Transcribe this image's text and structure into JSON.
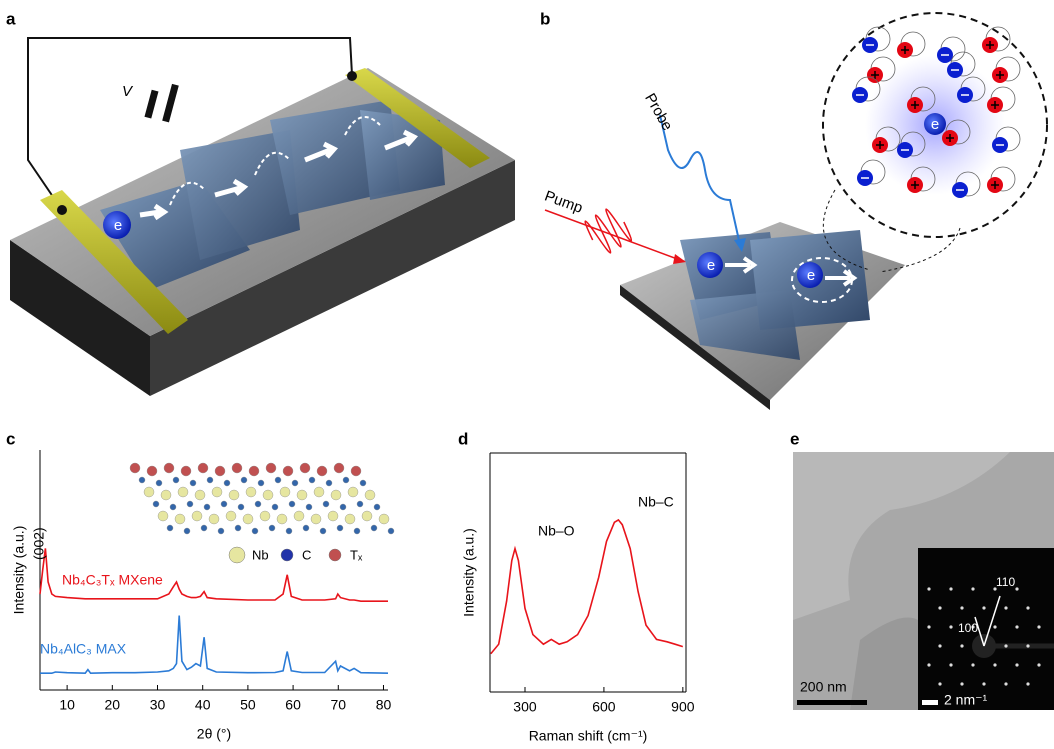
{
  "panel_labels": [
    "a",
    "b",
    "c",
    "d",
    "e"
  ],
  "diagram_a": {
    "voltage_label": "V",
    "electron_label": "e"
  },
  "diagram_b": {
    "probe_label": "Probe",
    "pump_label": "Pump",
    "electron_label": "e"
  },
  "chart_data": [
    {
      "type": "line",
      "x_label": "2θ (°)",
      "y_label": "Intensity (a.u.)",
      "xlim": [
        4,
        81
      ],
      "ylim": [
        0,
        100
      ],
      "xticks": [
        10,
        20,
        30,
        40,
        50,
        60,
        70,
        80
      ],
      "box": false,
      "annotations": [
        "(002)"
      ],
      "inset_legend": [
        "Nb",
        "C",
        "Tₓ"
      ],
      "x": [
        4,
        4.6,
        5.2,
        5.8,
        6.6,
        7.4,
        10,
        14,
        14.6,
        15.2,
        20,
        25,
        30,
        32.5,
        33.5,
        34.2,
        34.8,
        35.4,
        36.5,
        37.5,
        38.5,
        39.5,
        40.3,
        41,
        43,
        50,
        56,
        57.8,
        58.7,
        59.6,
        62,
        67,
        69.4,
        69.9,
        70.5,
        72.5,
        73.5,
        75,
        81
      ],
      "series": [
        {
          "name": "Nb₄C₃Tₓ MXene",
          "color": "#e8141b",
          "values": [
            40,
            50,
            59,
            45,
            40,
            39,
            38.5,
            38,
            38,
            38,
            38,
            38,
            38,
            40,
            43,
            45,
            42,
            40,
            39,
            38.5,
            38.5,
            39,
            41,
            38.5,
            38,
            37.5,
            37.5,
            40,
            48,
            39,
            37.5,
            37.5,
            38,
            40,
            38.5,
            37.5,
            37.5,
            37,
            37
          ]
        },
        {
          "name": "Nb₄AlC₃ MAX",
          "color": "#2b7bd6",
          "values": [
            7,
            7,
            7,
            7,
            7,
            7.5,
            7.2,
            7,
            8.5,
            7,
            7.2,
            7.2,
            7.5,
            8,
            9,
            11,
            31,
            12,
            8.5,
            9.5,
            11,
            10,
            22,
            9,
            7.5,
            7.2,
            7.3,
            8,
            16,
            8,
            7.3,
            7.3,
            12,
            8,
            10,
            8,
            9,
            7.2,
            7
          ]
        }
      ]
    },
    {
      "type": "line",
      "x_label": "Raman shift (cm⁻¹)",
      "y_label": "Intensity (a.u.)",
      "xlim": [
        167,
        912
      ],
      "ylim": [
        0,
        100
      ],
      "xticks": [
        300,
        600,
        900
      ],
      "box": true,
      "annotations": [
        "Nb–O",
        "Nb–C"
      ],
      "x": [
        170,
        200,
        230,
        250,
        262,
        275,
        300,
        330,
        370,
        400,
        430,
        460,
        500,
        540,
        580,
        610,
        640,
        655,
        670,
        700,
        730,
        760,
        800,
        840,
        870,
        900
      ],
      "values": [
        16,
        20,
        38,
        55,
        60,
        55,
        35,
        24,
        20,
        22,
        20,
        21,
        24,
        32,
        48,
        63,
        71,
        72,
        70,
        60,
        42,
        28,
        22,
        21,
        20,
        19
      ],
      "color": "#e8141b"
    }
  ],
  "image_e": {
    "scale_bar": "200 nm",
    "inset_scale_bar": "2 nm⁻¹",
    "spot_labels": [
      "100",
      "110"
    ]
  }
}
